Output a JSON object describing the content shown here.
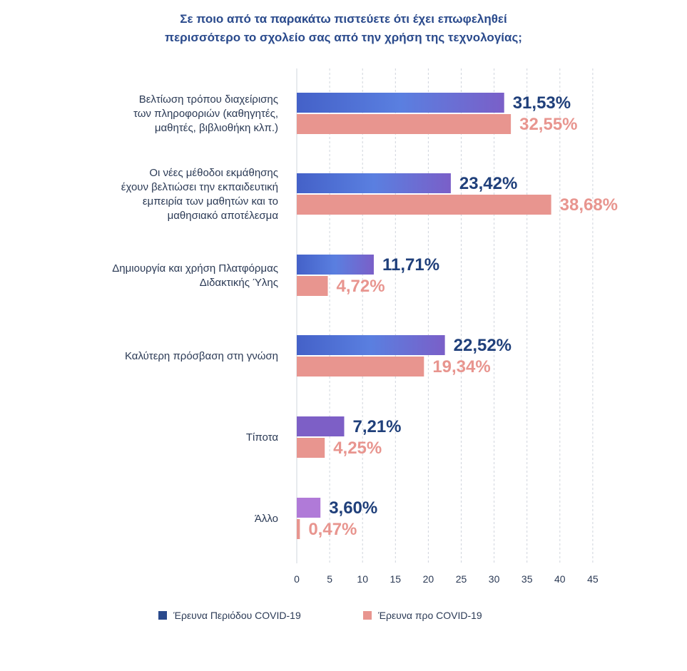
{
  "chart_data": {
    "type": "bar",
    "orientation": "horizontal",
    "title_lines": [
      "Σε ποιο από τα παρακάτω πιστεύετε ότι έχει επωφεληθεί",
      "περισσότερο το σχολείο σας από την χρήση της τεχνολογίας;"
    ],
    "categories": [
      [
        "Βελτίωση τρόπου διαχείρισης",
        "των πληροφοριών (καθηγητές,",
        "μαθητές, βιβλιοθήκη κλπ.)"
      ],
      [
        "Οι νέες μέθοδοι εκμάθησης",
        "έχουν βελτιώσει την εκπαιδευτική",
        "εμπειρία των μαθητών και το",
        "μαθησιακό αποτέλεσμα"
      ],
      [
        "Δημιουργία και χρήση Πλατφόρμας",
        "Διδακτικής Ύλης"
      ],
      [
        "Καλύτερη πρόσβαση στη γνώση"
      ],
      [
        "Τίποτα"
      ],
      [
        "Άλλο"
      ]
    ],
    "series": [
      {
        "name": "Έρευνα Περιόδου COVID-19",
        "values": [
          31.53,
          23.42,
          11.71,
          22.52,
          7.21,
          3.6
        ],
        "labels": [
          "31,53%",
          "23,42%",
          "11,71%",
          "22,52%",
          "7,21%",
          "3,60%"
        ],
        "color": "#2a4a8c",
        "bar_colors": [
          "#4a6bd2",
          "#3a57c0",
          "#4867cc",
          "#4c70d6",
          "#7d5fc6",
          "#b07ad8"
        ]
      },
      {
        "name": "Έρευνα προ COVID-19",
        "values": [
          32.55,
          38.68,
          4.72,
          19.34,
          4.25,
          0.47
        ],
        "labels": [
          "32,55%",
          "38,68%",
          "4,72%",
          "19,34%",
          "4,25%",
          "0,47%"
        ],
        "color": "#e8958f",
        "bar_colors": [
          "#e8958f",
          "#e8958f",
          "#e8958f",
          "#e8958f",
          "#e8958f",
          "#e8958f"
        ]
      }
    ],
    "x_ticks": [
      0,
      5,
      10,
      15,
      20,
      25,
      30,
      35,
      40,
      45
    ],
    "xlim": [
      0,
      45
    ],
    "grid": "vertical-dashed",
    "legend_position": "bottom"
  }
}
